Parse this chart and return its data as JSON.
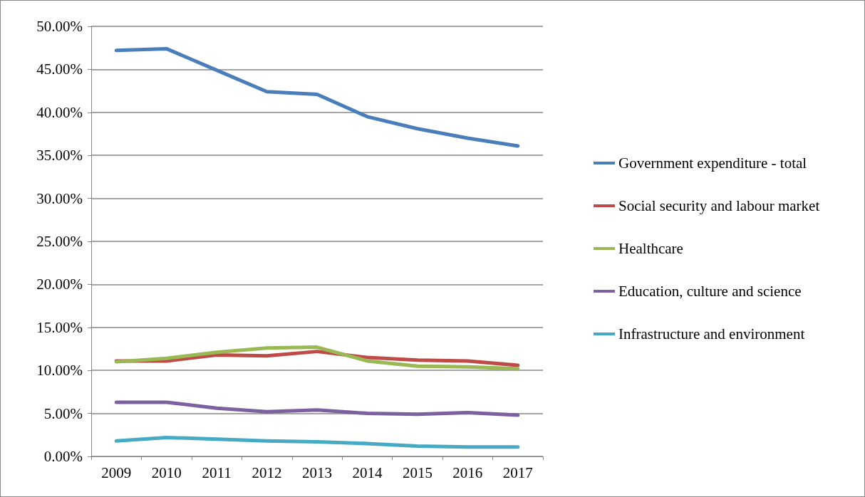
{
  "chart_data": {
    "type": "line",
    "categories": [
      "2009",
      "2010",
      "2011",
      "2012",
      "2013",
      "2014",
      "2015",
      "2016",
      "2017"
    ],
    "series": [
      {
        "name": "Government expenditure - total",
        "color": "#4a7ebb",
        "values": [
          47.2,
          47.4,
          44.9,
          42.4,
          42.1,
          39.5,
          38.1,
          37.0,
          36.1
        ]
      },
      {
        "name": "Social security and labour market",
        "color": "#be4b48",
        "values": [
          11.1,
          11.1,
          11.8,
          11.7,
          12.2,
          11.5,
          11.2,
          11.1,
          10.6
        ]
      },
      {
        "name": "Healthcare",
        "color": "#98b954",
        "values": [
          11.0,
          11.4,
          12.1,
          12.6,
          12.7,
          11.1,
          10.5,
          10.4,
          10.2
        ]
      },
      {
        "name": "Education, culture and science",
        "color": "#7d60a0",
        "values": [
          6.3,
          6.3,
          5.6,
          5.2,
          5.4,
          5.0,
          4.9,
          5.1,
          4.8
        ]
      },
      {
        "name": "Infrastructure and environment",
        "color": "#46aac5",
        "values": [
          1.8,
          2.2,
          2.0,
          1.8,
          1.7,
          1.5,
          1.2,
          1.1,
          1.1
        ]
      }
    ],
    "ylim": [
      0,
      50
    ],
    "yticks": [
      {
        "value": 0,
        "label": "0.00%"
      },
      {
        "value": 5,
        "label": "5.00%"
      },
      {
        "value": 10,
        "label": "10.00%"
      },
      {
        "value": 15,
        "label": "15.00%"
      },
      {
        "value": 20,
        "label": "20.00%"
      },
      {
        "value": 25,
        "label": "25.00%"
      },
      {
        "value": 30,
        "label": "30.00%"
      },
      {
        "value": 35,
        "label": "35.00%"
      },
      {
        "value": 40,
        "label": "40.00%"
      },
      {
        "value": 45,
        "label": "45.00%"
      },
      {
        "value": 50,
        "label": "50.00%"
      }
    ],
    "grid": "y",
    "legend": "right",
    "marker": "none",
    "line_style": "solid"
  }
}
